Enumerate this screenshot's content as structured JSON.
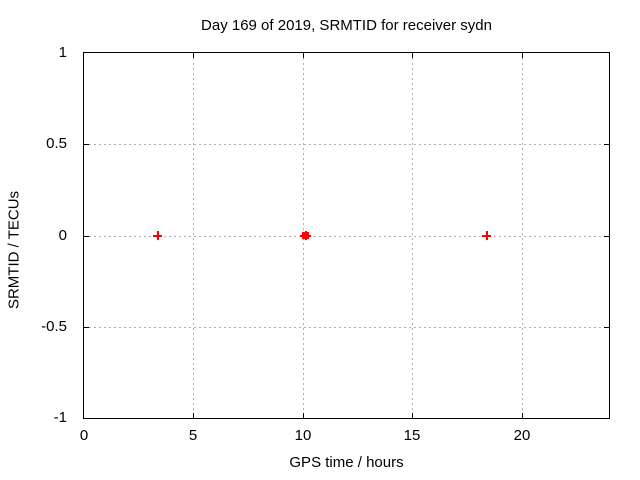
{
  "chart_data": {
    "type": "scatter",
    "title": "Day 169 of 2019, SRMTID for receiver sydn",
    "xlabel": "GPS time / hours",
    "ylabel": "SRMTID / TECUs",
    "xlim": [
      0,
      24
    ],
    "ylim": [
      -1,
      1
    ],
    "xticks": [
      0,
      5,
      10,
      15,
      20
    ],
    "xtick_labels": [
      "0",
      "5",
      "10",
      "15",
      "20"
    ],
    "yticks": [
      -1,
      -0.5,
      0,
      0.5,
      1
    ],
    "ytick_labels": [
      "-1",
      "-0.5",
      "0",
      "0.5",
      "1"
    ],
    "grid": true,
    "grid_style": "dashed",
    "legend": "none",
    "series": [
      {
        "name": "SRMTID",
        "marker": "plus",
        "color": "#ff0000",
        "points": [
          {
            "x": 3.37,
            "y": 0.0,
            "marker": "plus"
          },
          {
            "x": 10.13,
            "y": 0.0,
            "marker": "cluster"
          },
          {
            "x": 18.42,
            "y": 0.0,
            "marker": "plus"
          }
        ]
      }
    ],
    "colors": {
      "marker": "#ff0000",
      "grid": "#b0b0b0",
      "border": "#000000",
      "text": "#000000"
    }
  }
}
